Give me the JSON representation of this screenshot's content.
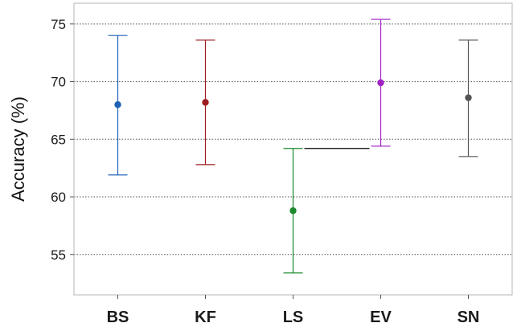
{
  "chart_data": {
    "type": "scatter",
    "title": "",
    "xlabel": "",
    "ylabel": "Accuracy (%)",
    "ylim": [
      51.5,
      76.8
    ],
    "yticks": [
      55,
      60,
      65,
      70,
      75
    ],
    "ytick_labels": [
      "55",
      "60",
      "65",
      "70",
      "75"
    ],
    "grid": "horizontal dotted",
    "categories": [
      "BS",
      "KF",
      "LS",
      "EV",
      "SN"
    ],
    "series": [
      {
        "points": [
          {
            "category": "BS",
            "mean": 68.0,
            "lower": 61.9,
            "upper": 74.0,
            "color": "#1f62b5"
          },
          {
            "category": "KF",
            "mean": 68.2,
            "lower": 62.8,
            "upper": 73.6,
            "color": "#9e1c20"
          },
          {
            "category": "LS",
            "mean": 58.8,
            "lower": 53.4,
            "upper": 64.2,
            "color": "#1c8a2e"
          },
          {
            "category": "EV",
            "mean": 69.9,
            "lower": 64.4,
            "upper": 75.4,
            "color": "#a121c4"
          },
          {
            "category": "SN",
            "mean": 68.6,
            "lower": 63.5,
            "upper": 73.6,
            "color": "#555555"
          }
        ]
      }
    ],
    "reference_segment": {
      "from": "LS",
      "to": "EV",
      "y": 64.2,
      "color": "#000000"
    }
  }
}
